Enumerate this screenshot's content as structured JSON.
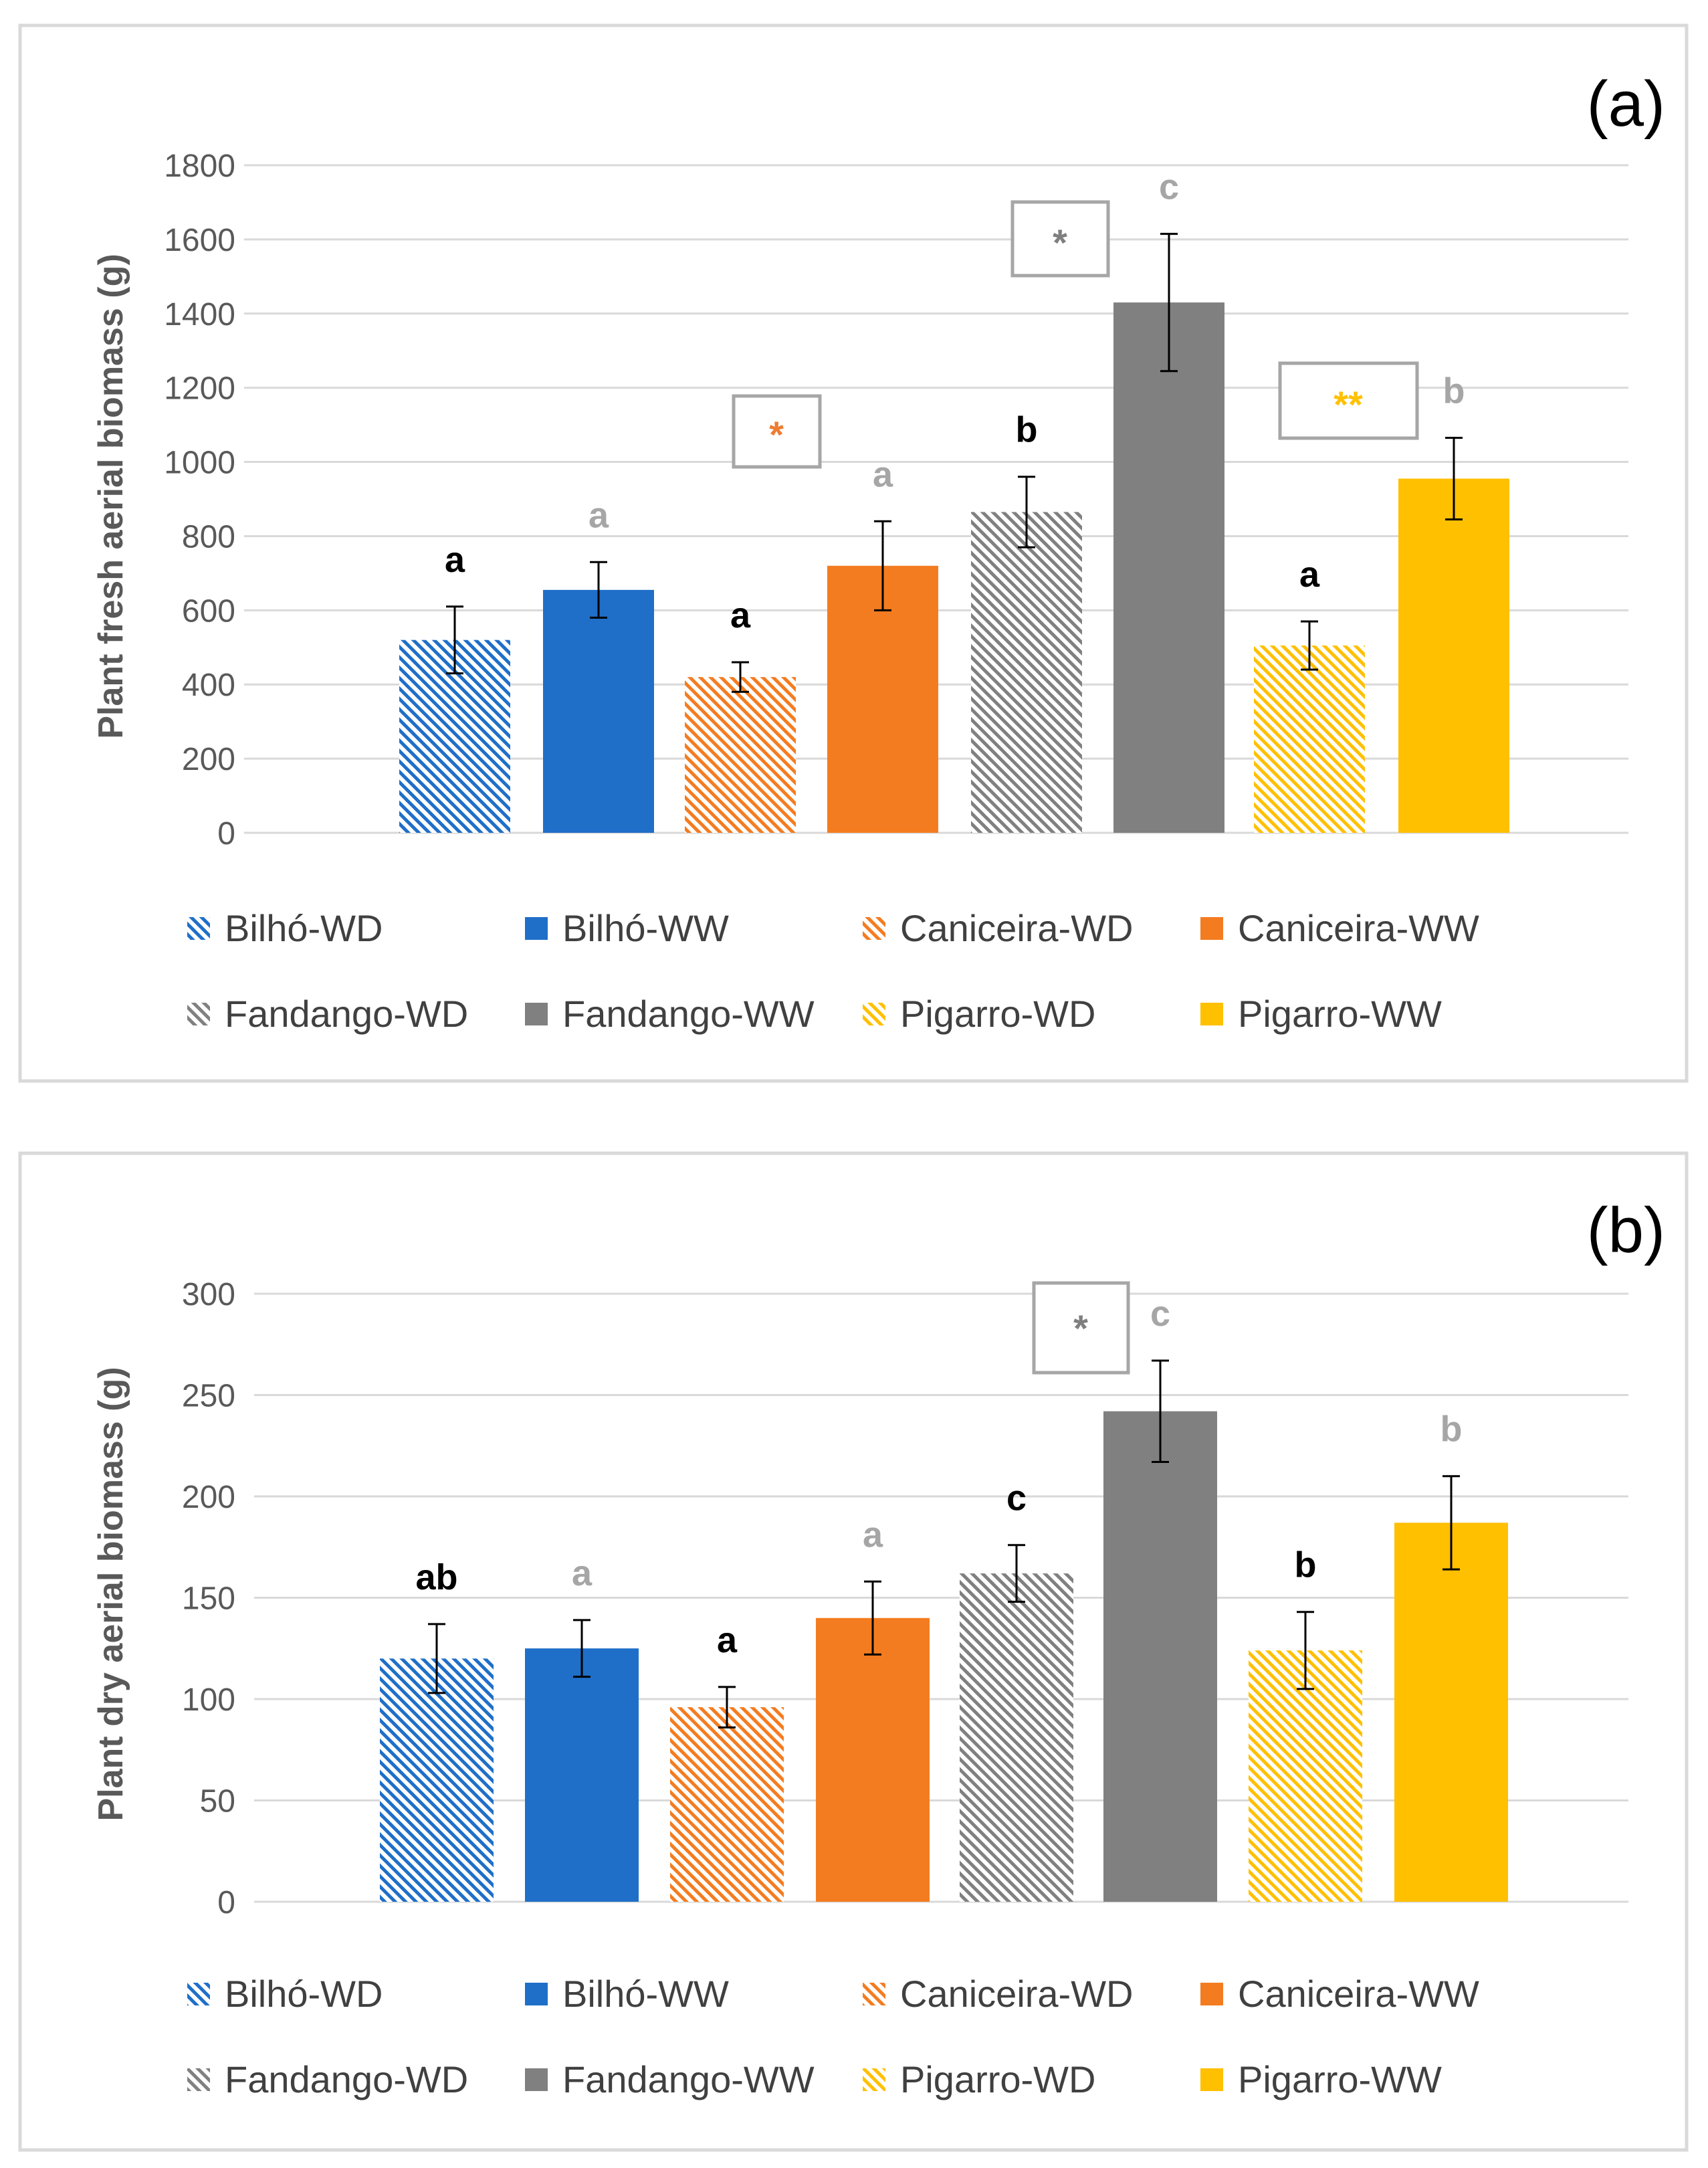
{
  "chart_data": [
    {
      "type": "bar",
      "panel_label": "(a)",
      "ylabel": "Plant fresh aerial biomass (g)",
      "ylim": [
        0,
        1800
      ],
      "yticks": [
        "0",
        "200",
        "400",
        "600",
        "800",
        "1000",
        "1200",
        "1400",
        "1600",
        "1800"
      ],
      "categories": [
        "Bilhó-WD",
        "Bilhó-WW",
        "Caniceira-WD",
        "Caniceira-WW",
        "Fandango-WD",
        "Fandango-WW",
        "Pigarro-WD",
        "Pigarro-WW"
      ],
      "values": [
        520,
        655,
        420,
        720,
        865,
        1430,
        505,
        955
      ],
      "errors": [
        90,
        75,
        40,
        120,
        95,
        185,
        65,
        110
      ],
      "letters": [
        "a",
        "a",
        "a",
        "a",
        "b",
        "c",
        "a",
        "b"
      ],
      "significance": [
        {
          "pair": "Caniceira",
          "label": "*",
          "color": "#ED7D31"
        },
        {
          "pair": "Fandango",
          "label": "*",
          "color": "#7F7F7F"
        },
        {
          "pair": "Pigarro",
          "label": "**",
          "color": "#FFC000"
        }
      ],
      "legend_position": "bottom",
      "grid": true
    },
    {
      "type": "bar",
      "panel_label": "(b)",
      "ylabel": "Plant dry aerial biomass (g)",
      "ylim": [
        0,
        300
      ],
      "yticks": [
        "0",
        "50",
        "100",
        "150",
        "200",
        "250",
        "300"
      ],
      "categories": [
        "Bilhó-WD",
        "Bilhó-WW",
        "Caniceira-WD",
        "Caniceira-WW",
        "Fandango-WD",
        "Fandango-WW",
        "Pigarro-WD",
        "Pigarro-WW"
      ],
      "values": [
        120,
        125,
        96,
        140,
        162,
        242,
        124,
        187
      ],
      "errors": [
        17,
        14,
        10,
        18,
        14,
        25,
        19,
        23
      ],
      "letters": [
        "ab",
        "a",
        "a",
        "a",
        "c",
        "c",
        "b",
        "b"
      ],
      "significance": [
        {
          "pair": "Fandango",
          "label": "*",
          "color": "#7F7F7F"
        }
      ],
      "legend_position": "bottom",
      "grid": true
    }
  ],
  "colors": {
    "Bilhó": "#1F6FC8",
    "Caniceira": "#F47C20",
    "Fandango": "#808080",
    "Pigarro": "#FFC000",
    "letter_wd": "#000000",
    "letter_ww": "#A6A6A6"
  }
}
